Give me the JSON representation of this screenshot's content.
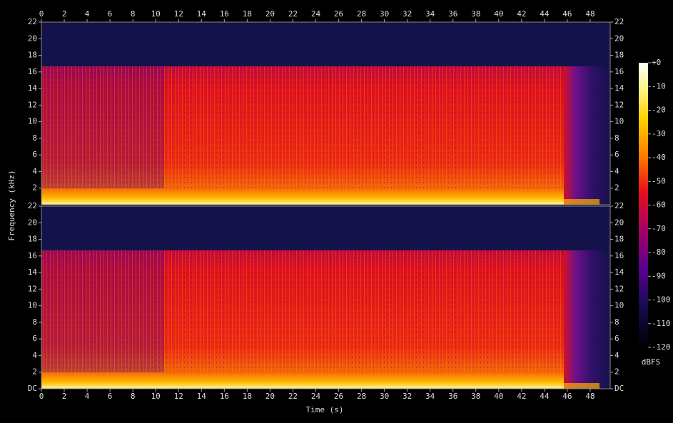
{
  "chart_data": {
    "type": "spectrogram",
    "xlabel": "Time (s)",
    "ylabel": "Frequency (kHz)",
    "colorbar_label": "dBFS",
    "xlim": [
      0,
      49.75
    ],
    "xticks": [
      0,
      2,
      4,
      6,
      8,
      10,
      12,
      14,
      16,
      18,
      20,
      22,
      24,
      26,
      28,
      30,
      32,
      34,
      36,
      38,
      40,
      42,
      44,
      46,
      48
    ],
    "panels": [
      {
        "ylim": [
          0,
          22
        ],
        "yticks": [
          2,
          4,
          6,
          8,
          10,
          12,
          14,
          16,
          18,
          20,
          22
        ]
      },
      {
        "ylim": [
          0,
          22
        ],
        "yticks": [
          {
            "value": 0,
            "label": "DC"
          },
          2,
          4,
          6,
          8,
          10,
          12,
          14,
          16,
          18,
          20,
          22
        ]
      }
    ],
    "clim": [
      -120,
      0
    ],
    "cticks": [
      {
        "value": 0,
        "label": "+0"
      },
      -10,
      -20,
      -30,
      -40,
      -50,
      -60,
      -70,
      -80,
      -90,
      -100,
      -110,
      -120
    ]
  }
}
